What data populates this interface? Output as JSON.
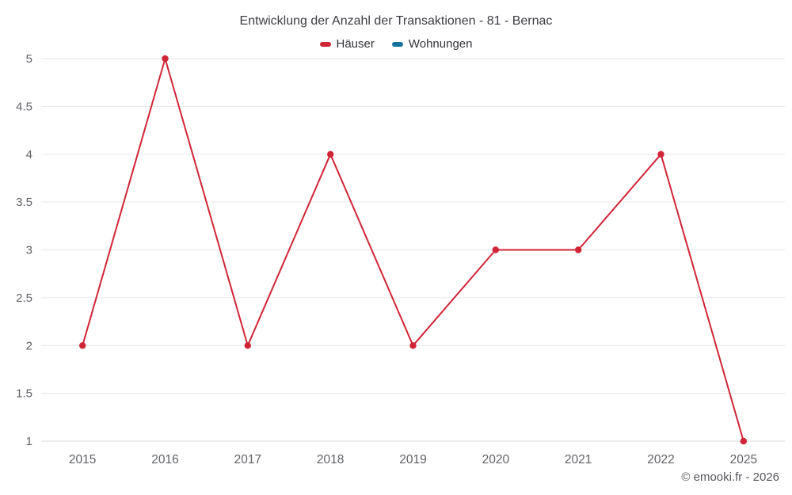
{
  "title": "Entwicklung der Anzahl der Transaktionen - 81 - Bernac",
  "legend": {
    "items": [
      {
        "label": "Häuser",
        "color": "#d02537"
      },
      {
        "label": "Wohnungen",
        "color": "#16739e"
      }
    ]
  },
  "footer": {
    "credit": "© emooki.fr - 2026"
  },
  "chart_data": {
    "type": "line",
    "title": "Entwicklung der Anzahl der Transaktionen - 81 - Bernac",
    "categories": [
      "2015",
      "2016",
      "2017",
      "2018",
      "2019",
      "2020",
      "2021",
      "2022",
      "2025"
    ],
    "series": [
      {
        "name": "Häuser",
        "color": "#d02537",
        "values": [
          2,
          5,
          2,
          4,
          2,
          3,
          3,
          4,
          1
        ]
      },
      {
        "name": "Wohnungen",
        "color": "#16739e",
        "values": []
      }
    ],
    "xlabel": "",
    "ylabel": "",
    "ylim": [
      1,
      5
    ],
    "yticks": [
      1,
      1.5,
      2,
      2.5,
      3,
      3.5,
      4,
      4.5,
      5
    ],
    "grid": "horizontal",
    "legend_position": "top",
    "colors": {
      "gridline": "#e6e6e6",
      "axis_line": "#d8d8d8",
      "tick_label": "#606266"
    }
  }
}
